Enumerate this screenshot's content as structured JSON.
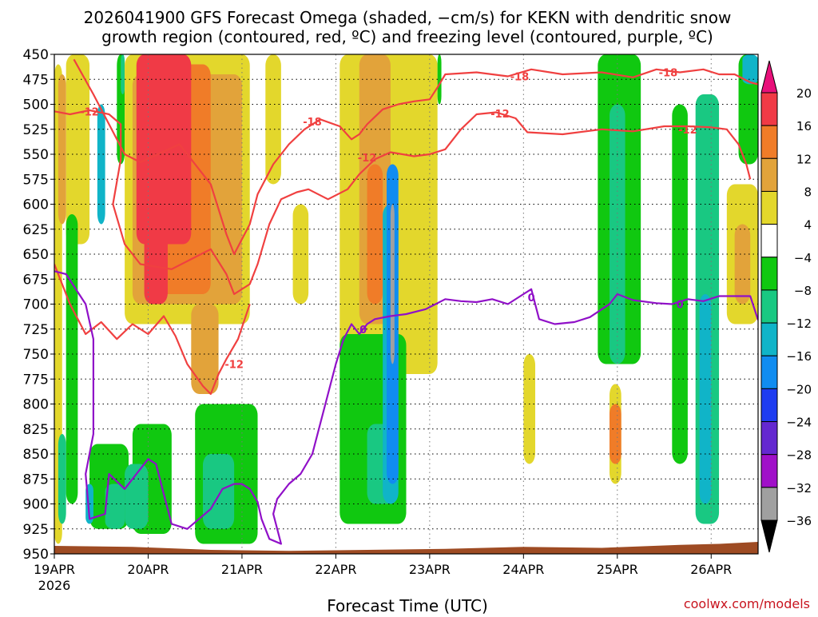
{
  "chart_data": {
    "type": "heatmap",
    "title_line1": "2026041900 GFS Forecast Omega (shaded, −cm/s) for KEKN with dendritic snow",
    "title_line2": "growth region (contoured, red, ºC) and freezing level (contoured, purple, ºC)",
    "xlabel": "Forecast Time (UTC)",
    "credit": "coolwx.com/models",
    "x_ticks": [
      {
        "hour": 0,
        "label": "19APR"
      },
      {
        "hour": 24,
        "label": "20APR"
      },
      {
        "hour": 48,
        "label": "21APR"
      },
      {
        "hour": 72,
        "label": "22APR"
      },
      {
        "hour": 96,
        "label": "23APR"
      },
      {
        "hour": 120,
        "label": "24APR"
      },
      {
        "hour": 144,
        "label": "25APR"
      },
      {
        "hour": 168,
        "label": "26APR"
      }
    ],
    "x_year_label": "2026",
    "xlim_hours": [
      0,
      180
    ],
    "y_ticks": [
      450,
      475,
      500,
      525,
      550,
      575,
      600,
      625,
      650,
      675,
      700,
      725,
      750,
      775,
      800,
      825,
      850,
      875,
      900,
      925,
      950
    ],
    "ylim_hPa": [
      450,
      950
    ],
    "colorbar": {
      "labels": [
        "20",
        "16",
        "12",
        "8",
        "4",
        "−4",
        "−8",
        "−12",
        "−16",
        "−20",
        "−24",
        "−28",
        "−32",
        "−36"
      ],
      "segments": [
        {
          "lo": 16,
          "hi": 20,
          "color": "#f03a46"
        },
        {
          "lo": 12,
          "hi": 16,
          "color": "#f07c28"
        },
        {
          "lo": 8,
          "hi": 12,
          "color": "#e2a33a"
        },
        {
          "lo": 4,
          "hi": 8,
          "color": "#e3d72c"
        },
        {
          "lo": -4,
          "hi": 4,
          "color": "#ffffff"
        },
        {
          "lo": -8,
          "hi": -4,
          "color": "#10c810"
        },
        {
          "lo": -12,
          "hi": -8,
          "color": "#19c882"
        },
        {
          "lo": -16,
          "hi": -12,
          "color": "#10b4c8"
        },
        {
          "lo": -20,
          "hi": -16,
          "color": "#108cf0"
        },
        {
          "lo": -24,
          "hi": -20,
          "color": "#1e3cf0"
        },
        {
          "lo": -28,
          "hi": -24,
          "color": "#6428d0"
        },
        {
          "lo": -32,
          "hi": -28,
          "color": "#a010c8"
        },
        {
          "lo": -36,
          "hi": -32,
          "color": "#a0a0a0"
        }
      ],
      "top_arrow_color": "#e8107a",
      "bottom_arrow_color": "#000000"
    },
    "omega_regions": [
      {
        "value": 6,
        "t0": 0,
        "t1": 2,
        "p0": 460,
        "p1": 940
      },
      {
        "value": 6,
        "t0": 3,
        "t1": 9,
        "p0": 450,
        "p1": 640
      },
      {
        "value": 10,
        "t0": 1,
        "t1": 3,
        "p0": 470,
        "p1": 620
      },
      {
        "value": -6,
        "t0": 3,
        "t1": 6,
        "p0": 610,
        "p1": 900
      },
      {
        "value": -10,
        "t0": 1,
        "t1": 3,
        "p0": 830,
        "p1": 920
      },
      {
        "value": -14,
        "t0": 11,
        "t1": 13,
        "p0": 500,
        "p1": 620
      },
      {
        "value": -6,
        "t0": 9,
        "t1": 19,
        "p0": 840,
        "p1": 925
      },
      {
        "value": -10,
        "t0": 13,
        "t1": 18,
        "p0": 880,
        "p1": 925
      },
      {
        "value": -14,
        "t0": 8,
        "t1": 10,
        "p0": 880,
        "p1": 920
      },
      {
        "value": -6,
        "t0": 16,
        "t1": 18,
        "p0": 450,
        "p1": 560
      },
      {
        "value": -10,
        "t0": 17,
        "t1": 18,
        "p0": 450,
        "p1": 490
      },
      {
        "value": 6,
        "t0": 18,
        "t1": 50,
        "p0": 450,
        "p1": 720
      },
      {
        "value": 10,
        "t0": 20,
        "t1": 48,
        "p0": 470,
        "p1": 700
      },
      {
        "value": 14,
        "t0": 26,
        "t1": 40,
        "p0": 460,
        "p1": 690
      },
      {
        "value": 20,
        "t0": 21,
        "t1": 35,
        "p0": 450,
        "p1": 640
      },
      {
        "value": 18,
        "t0": 23,
        "t1": 29,
        "p0": 620,
        "p1": 700
      },
      {
        "value": 10,
        "t0": 35,
        "t1": 42,
        "p0": 700,
        "p1": 790
      },
      {
        "value": -6,
        "t0": 20,
        "t1": 30,
        "p0": 820,
        "p1": 930
      },
      {
        "value": -10,
        "t0": 18,
        "t1": 24,
        "p0": 860,
        "p1": 925
      },
      {
        "value": -6,
        "t0": 36,
        "t1": 52,
        "p0": 800,
        "p1": 940
      },
      {
        "value": -10,
        "t0": 38,
        "t1": 46,
        "p0": 850,
        "p1": 925
      },
      {
        "value": 6,
        "t0": 54,
        "t1": 58,
        "p0": 450,
        "p1": 580
      },
      {
        "value": 6,
        "t0": 61,
        "t1": 65,
        "p0": 600,
        "p1": 700
      },
      {
        "value": 6,
        "t0": 73,
        "t1": 98,
        "p0": 450,
        "p1": 770
      },
      {
        "value": 10,
        "t0": 78,
        "t1": 86,
        "p0": 450,
        "p1": 720
      },
      {
        "value": 14,
        "t0": 80,
        "t1": 84,
        "p0": 560,
        "p1": 700
      },
      {
        "value": -6,
        "t0": 73,
        "t1": 90,
        "p0": 730,
        "p1": 920
      },
      {
        "value": -10,
        "t0": 80,
        "t1": 87,
        "p0": 820,
        "p1": 900
      },
      {
        "value": -14,
        "t0": 84,
        "t1": 88,
        "p0": 600,
        "p1": 900
      },
      {
        "value": -18,
        "t0": 85,
        "t1": 88,
        "p0": 560,
        "p1": 880
      },
      {
        "value": -34,
        "t0": 86,
        "t1": 87,
        "p0": 600,
        "p1": 760
      },
      {
        "value": -6,
        "t0": 98,
        "t1": 99,
        "p0": 450,
        "p1": 500
      },
      {
        "value": 6,
        "t0": 120,
        "t1": 123,
        "p0": 750,
        "p1": 860
      },
      {
        "value": 6,
        "t0": 142,
        "t1": 145,
        "p0": 780,
        "p1": 880
      },
      {
        "value": 14,
        "t0": 142,
        "t1": 145,
        "p0": 800,
        "p1": 860
      },
      {
        "value": -6,
        "t0": 139,
        "t1": 150,
        "p0": 450,
        "p1": 760
      },
      {
        "value": -10,
        "t0": 142,
        "t1": 146,
        "p0": 500,
        "p1": 760
      },
      {
        "value": -6,
        "t0": 158,
        "t1": 162,
        "p0": 500,
        "p1": 860
      },
      {
        "value": -10,
        "t0": 164,
        "t1": 170,
        "p0": 490,
        "p1": 920
      },
      {
        "value": -14,
        "t0": 165,
        "t1": 168,
        "p0": 690,
        "p1": 900
      },
      {
        "value": 6,
        "t0": 172,
        "t1": 180,
        "p0": 580,
        "p1": 720
      },
      {
        "value": 10,
        "t0": 174,
        "t1": 178,
        "p0": 620,
        "p1": 700
      },
      {
        "value": -6,
        "t0": 175,
        "t1": 180,
        "p0": 450,
        "p1": 560
      },
      {
        "value": -14,
        "t0": 176,
        "t1": 180,
        "p0": 450,
        "p1": 480
      }
    ],
    "dgz_contours": [
      {
        "name": "-12 ºC isotherm (lower)",
        "label": "-12",
        "color": "#f04040",
        "label_positions": [
          [
            46,
            760
          ]
        ],
        "points": [
          [
            0,
            660
          ],
          [
            4,
            700
          ],
          [
            8,
            730
          ],
          [
            12,
            718
          ],
          [
            16,
            735
          ],
          [
            20,
            720
          ],
          [
            24,
            730
          ],
          [
            28,
            712
          ],
          [
            31,
            732
          ],
          [
            34,
            760
          ],
          [
            38,
            782
          ],
          [
            40,
            790
          ],
          [
            42,
            770
          ],
          [
            44,
            755
          ],
          [
            47,
            735
          ],
          [
            50,
            700
          ]
        ]
      },
      {
        "name": "-12 ºC isotherm (upper)",
        "label": "-12",
        "color": "#f04040",
        "label_positions": [
          [
            9,
            507
          ],
          [
            80,
            553
          ],
          [
            114,
            509
          ],
          [
            162,
            525
          ]
        ],
        "points": [
          [
            0,
            507
          ],
          [
            4,
            510
          ],
          [
            9,
            506
          ],
          [
            14,
            510
          ],
          [
            17,
            520
          ],
          [
            17,
            555
          ],
          [
            15,
            600
          ],
          [
            18,
            640
          ],
          [
            22,
            660
          ],
          [
            30,
            665
          ],
          [
            40,
            645
          ],
          [
            44,
            670
          ],
          [
            46,
            690
          ],
          [
            50,
            680
          ],
          [
            52,
            660
          ],
          [
            55,
            620
          ],
          [
            58,
            595
          ],
          [
            62,
            588
          ],
          [
            65,
            585
          ],
          [
            70,
            595
          ],
          [
            75,
            585
          ],
          [
            78,
            570
          ],
          [
            82,
            555
          ],
          [
            86,
            548
          ],
          [
            92,
            552
          ],
          [
            96,
            550
          ],
          [
            100,
            545
          ],
          [
            104,
            525
          ],
          [
            108,
            510
          ],
          [
            113,
            508
          ],
          [
            118,
            514
          ],
          [
            121,
            528
          ],
          [
            130,
            530
          ],
          [
            140,
            525
          ],
          [
            148,
            527
          ],
          [
            156,
            522
          ],
          [
            162,
            522
          ],
          [
            168,
            523
          ],
          [
            172,
            525
          ],
          [
            175,
            540
          ],
          [
            177,
            560
          ],
          [
            178,
            575
          ]
        ]
      },
      {
        "name": "-18 ºC isotherm (upper)",
        "label": "-18",
        "color": "#f04040",
        "label_positions": [
          [
            66,
            517
          ],
          [
            119,
            472
          ],
          [
            157,
            468
          ]
        ],
        "points": [
          [
            5,
            455
          ],
          [
            10,
            490
          ],
          [
            14,
            520
          ],
          [
            18,
            550
          ],
          [
            22,
            558
          ],
          [
            32,
            540
          ],
          [
            40,
            580
          ],
          [
            44,
            630
          ],
          [
            46,
            650
          ],
          [
            50,
            620
          ],
          [
            52,
            590
          ],
          [
            56,
            560
          ],
          [
            60,
            540
          ],
          [
            64,
            525
          ],
          [
            68,
            515
          ],
          [
            73,
            522
          ],
          [
            76,
            535
          ],
          [
            78,
            530
          ],
          [
            80,
            520
          ],
          [
            84,
            505
          ],
          [
            88,
            500
          ],
          [
            92,
            497
          ],
          [
            96,
            495
          ],
          [
            98,
            483
          ],
          [
            100,
            470
          ],
          [
            108,
            468
          ],
          [
            116,
            472
          ],
          [
            122,
            465
          ],
          [
            130,
            470
          ],
          [
            140,
            468
          ],
          [
            148,
            473
          ],
          [
            154,
            465
          ],
          [
            160,
            468
          ],
          [
            166,
            465
          ],
          [
            170,
            470
          ],
          [
            174,
            470
          ],
          [
            178,
            478
          ],
          [
            180,
            480
          ]
        ]
      }
    ],
    "freezing_level": {
      "name": "0 ºC freezing level",
      "label": "0",
      "color": "#9010c8",
      "label_positions": [
        [
          79,
          725
        ],
        [
          122,
          693
        ],
        [
          160,
          700
        ]
      ],
      "points": [
        [
          0,
          667
        ],
        [
          3,
          670
        ],
        [
          8,
          700
        ],
        [
          10,
          735
        ],
        [
          10,
          830
        ],
        [
          8,
          870
        ],
        [
          9,
          915
        ],
        [
          13,
          910
        ],
        [
          14,
          870
        ],
        [
          18,
          885
        ],
        [
          21,
          870
        ],
        [
          24,
          855
        ],
        [
          26,
          860
        ],
        [
          28,
          890
        ],
        [
          30,
          920
        ],
        [
          34,
          925
        ],
        [
          40,
          905
        ],
        [
          43,
          885
        ],
        [
          46,
          880
        ],
        [
          48,
          880
        ],
        [
          50,
          885
        ],
        [
          52,
          898
        ],
        [
          53,
          915
        ],
        [
          55,
          935
        ],
        [
          58,
          940
        ],
        [
          56,
          910
        ],
        [
          57,
          895
        ],
        [
          60,
          880
        ],
        [
          63,
          870
        ],
        [
          66,
          850
        ],
        [
          68,
          820
        ],
        [
          70,
          790
        ],
        [
          72,
          760
        ],
        [
          74,
          735
        ],
        [
          76,
          720
        ],
        [
          78,
          730
        ],
        [
          80,
          720
        ],
        [
          82,
          715
        ],
        [
          86,
          712
        ],
        [
          90,
          710
        ],
        [
          95,
          705
        ],
        [
          100,
          695
        ],
        [
          104,
          697
        ],
        [
          108,
          698
        ],
        [
          112,
          695
        ],
        [
          116,
          700
        ],
        [
          120,
          690
        ],
        [
          122,
          685
        ],
        [
          124,
          715
        ],
        [
          128,
          720
        ],
        [
          133,
          718
        ],
        [
          137,
          713
        ],
        [
          142,
          700
        ],
        [
          144,
          690
        ],
        [
          148,
          696
        ],
        [
          154,
          699
        ],
        [
          158,
          700
        ],
        [
          162,
          695
        ],
        [
          166,
          697
        ],
        [
          170,
          692
        ],
        [
          178,
          692
        ],
        [
          180,
          716
        ]
      ]
    },
    "terrain": {
      "name": "terrain / surface",
      "color": "#9e4b23",
      "points": [
        [
          0,
          942
        ],
        [
          20,
          943
        ],
        [
          40,
          946
        ],
        [
          60,
          947
        ],
        [
          80,
          946
        ],
        [
          100,
          945
        ],
        [
          120,
          943
        ],
        [
          140,
          944
        ],
        [
          160,
          941
        ],
        [
          170,
          940
        ],
        [
          180,
          938
        ]
      ]
    }
  }
}
